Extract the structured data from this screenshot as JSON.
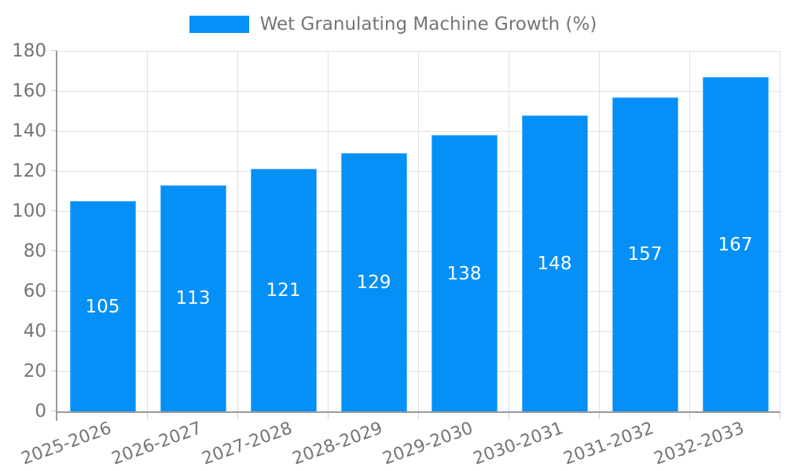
{
  "legend": {
    "label": "Wet Granulating Machine Growth (%)"
  },
  "chart_data": {
    "type": "bar",
    "title": "",
    "categories": [
      "2025-2026",
      "2026-2027",
      "2027-2028",
      "2028-2029",
      "2029-2030",
      "2030-2031",
      "2031-2032",
      "2032-2033"
    ],
    "series": [
      {
        "name": "Wet Granulating Machine Growth (%)",
        "values": [
          105,
          113,
          121,
          129,
          138,
          148,
          157,
          167
        ]
      }
    ],
    "xlabel": "",
    "ylabel": "",
    "ylim": [
      0,
      180
    ],
    "ytick_step": 20,
    "grid": true,
    "legend_position": "top",
    "colors": {
      "bar": "#0590f8",
      "bar_value_text": "#ffffff",
      "axis_text": "#757575",
      "grid_line": "#e0e0e0",
      "axis_line": "#999999",
      "tick_line": "#cccccc"
    }
  }
}
